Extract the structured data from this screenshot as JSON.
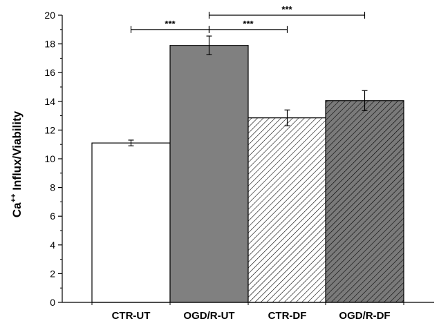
{
  "chart_data": {
    "type": "bar",
    "title": "",
    "xlabel": "",
    "ylabel": {
      "base": "Ca",
      "superscript": "++",
      "rest": " Influx/Viability"
    },
    "ylim": [
      0,
      20
    ],
    "yticks": [
      "0",
      "2",
      "4",
      "6",
      "8",
      "10",
      "12",
      "14",
      "16",
      "18",
      "20"
    ],
    "categories": [
      "CTR-UT",
      "OGD/R-UT",
      "CTR-DF",
      "OGD/R-DF"
    ],
    "values": [
      11.1,
      17.9,
      12.85,
      14.05
    ],
    "errors": [
      0.2,
      0.65,
      0.55,
      0.7
    ],
    "fills": [
      "white",
      "gray",
      "hatch-light",
      "hatch-dark"
    ],
    "colors": {
      "white_fill": "#ffffff",
      "gray_fill": "#808080",
      "hatch_light_bg": "#ffffff",
      "hatch_dark_bg": "#7a7a7a",
      "hatch_stroke": "#000000",
      "outline": "#000000"
    },
    "significance": [
      {
        "from": 0,
        "to": 1,
        "label": "***",
        "y": 19.0
      },
      {
        "from": 1,
        "to": 2,
        "label": "***",
        "y": 19.0
      },
      {
        "from": 1,
        "to": 3,
        "label": "***",
        "y": 20.0
      }
    ],
    "grid": false,
    "legend": "none"
  }
}
